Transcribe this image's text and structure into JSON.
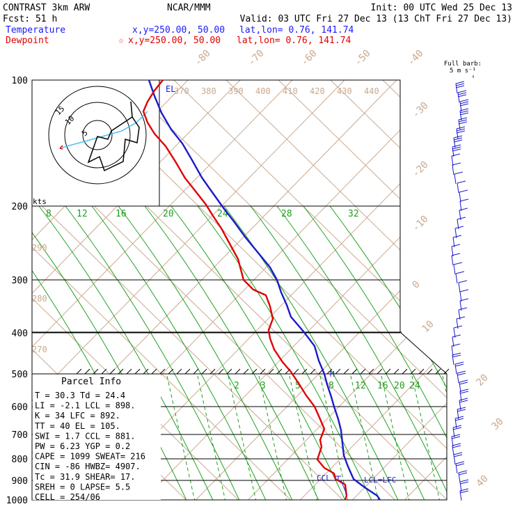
{
  "header": {
    "line1_left": "CONTRAST  3km ARW",
    "line1_center": "NCAR/MMM",
    "line1_right": "Init: 00 UTC Wed 25 Dec 13",
    "line2_left": "Fcst:    51 h",
    "line2_right": "Valid: 03 UTC Fri 27 Dec 13 (13 ChT Fri 27 Dec 13)",
    "temp_label": "Temperature",
    "temp_xy": "x,y=250.00, 50.00",
    "temp_latlon": "lat,lon=  0.76, 141.74",
    "dew_label": "Dewpoint",
    "dew_marker": "☆",
    "dew_xy": "x,y=250.00, 50.00",
    "dew_latlon": "lat,lon=  0.76, 141.74",
    "barb_note_1": "Full barb:",
    "barb_note_2": "5 m s⁻¹"
  },
  "hodograph": {
    "units": "kts",
    "ring_labels": [
      "5",
      "10",
      "15"
    ]
  },
  "labels": {
    "el": "EL",
    "m": "M",
    "ccl": "CCL",
    "lcl_lfc": "LCL=LFC"
  },
  "parcel_info": {
    "title": "Parcel Info",
    "rows": [
      "T   =   30.3  Td =  24.4",
      "LI  =   -2.1  LCL =  898.",
      "K   =     34  LFC =  892.",
      "TT  =     40  EL  =  105.",
      "SWI =    1.7  CCL =  881.",
      "PW  =   6.23  YGP =   0.2",
      "CAPE =  1099  SWEAT=  216",
      "CIN  =   -86  HWBZ= 4907.",
      "Tc  =   31.9  SHEAR=  17.",
      "SREH =     0  LAPSE=  5.5",
      "CELL = 254/06"
    ]
  },
  "chart_data": {
    "type": "skew-T log-p sounding",
    "pressure_levels": [
      "100",
      "200",
      "300",
      "400",
      "500",
      "600",
      "700",
      "800",
      "900",
      "1000"
    ],
    "isotherm_labels": [
      "-80",
      "-70",
      "-60",
      "-50",
      "-40",
      "-30",
      "-20",
      "-10",
      "0",
      "10",
      "20",
      "30",
      "40"
    ],
    "theta_labels_top": [
      "370",
      "380",
      "390",
      "400",
      "410",
      "420",
      "430",
      "440"
    ],
    "theta_labels_left": [
      "290",
      "280",
      "270"
    ],
    "mixing_ratio_labels_upper": [
      "8",
      "12",
      "16",
      "20",
      "24",
      "28",
      "32"
    ],
    "mixing_ratio_labels_lower": [
      "2",
      "3",
      "5",
      "8",
      "12",
      "16",
      "20",
      "24"
    ],
    "temperature_color": "#1a1acc",
    "dewpoint_color": "#e00000",
    "isotherm_color": "#c9a98f",
    "moist_adiabat_color": "#1fa01f"
  }
}
